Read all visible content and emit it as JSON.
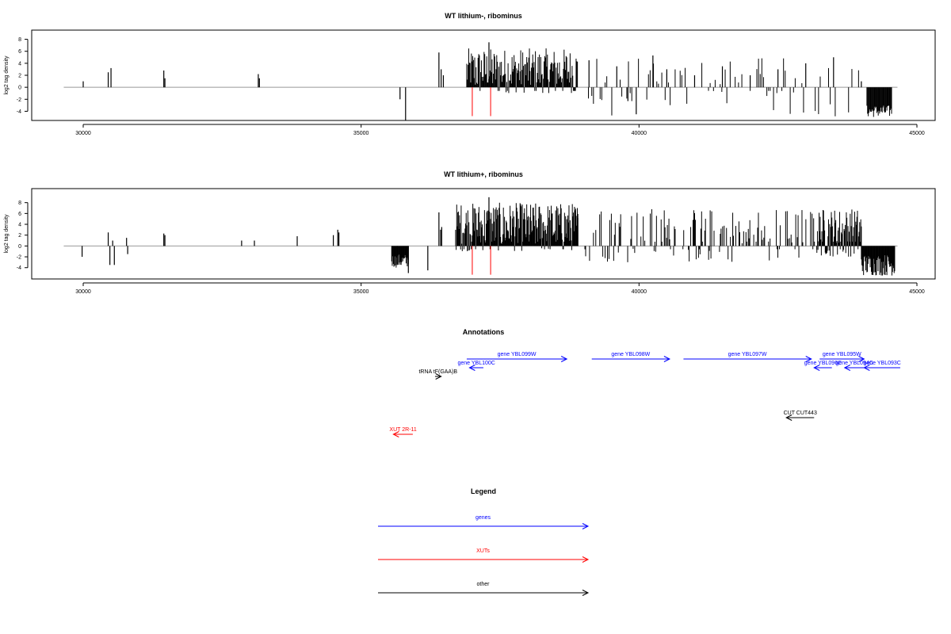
{
  "chart_data": [
    {
      "type": "bar",
      "title": "WT lithium-, ribominus",
      "ylabel": "log2 tag density",
      "xlim": [
        29600,
        44800
      ],
      "ylim": [
        -5,
        9
      ],
      "xticks": [
        30000,
        35000,
        40000,
        45000
      ],
      "yticks": [
        -4,
        -2,
        0,
        2,
        4,
        6,
        8
      ],
      "baseline": [
        29650,
        44650
      ],
      "red_markers": [
        37000,
        37330
      ],
      "bars": [
        {
          "x": 30000,
          "y": 1
        },
        {
          "x": 30450,
          "y": 2.5
        },
        {
          "x": 30500,
          "y": 3.2
        },
        {
          "x": 31450,
          "y": 2.8
        },
        {
          "x": 31470,
          "y": 1.5
        },
        {
          "x": 33150,
          "y": 2.2
        },
        {
          "x": 33170,
          "y": 1.5
        },
        {
          "x": 35700,
          "y": -2
        },
        {
          "x": 35800,
          "y": -5.5
        },
        {
          "x": 36400,
          "y": 5.8
        },
        {
          "x": 36440,
          "y": 3
        },
        {
          "x": 36480,
          "y": 2
        },
        {
          "x": 37300,
          "y": 7.5
        },
        {
          "x": 39100,
          "y": 4.5
        },
        {
          "x": 39600,
          "y": 3.5
        },
        {
          "x": 39800,
          "y": -2.3
        },
        {
          "x": 39950,
          "y": -4.5
        },
        {
          "x": 40250,
          "y": 5.3
        },
        {
          "x": 40500,
          "y": 3
        },
        {
          "x": 41000,
          "y": 2
        },
        {
          "x": 41500,
          "y": 3.5
        },
        {
          "x": 42000,
          "y": 2
        },
        {
          "x": 42500,
          "y": 3
        },
        {
          "x": 43000,
          "y": 4
        },
        {
          "x": 43500,
          "y": 5
        },
        {
          "x": 44000,
          "y": 1
        }
      ],
      "dense_regions": [
        {
          "from": 36900,
          "to": 38900,
          "min": -1,
          "max": 6.5,
          "step": 12
        },
        {
          "from": 39000,
          "to": 44000,
          "min": -5,
          "max": 5,
          "step": 30,
          "sparse": true
        },
        {
          "from": 44100,
          "to": 44550,
          "min": -5,
          "max": -3,
          "step": 12
        }
      ]
    },
    {
      "type": "bar",
      "title": "WT lithium+, ribominus",
      "ylabel": "log2 tag density",
      "xlim": [
        29600,
        44800
      ],
      "ylim": [
        -5.5,
        10
      ],
      "xticks": [
        30000,
        35000,
        40000,
        45000
      ],
      "yticks": [
        -4,
        -2,
        0,
        2,
        4,
        6,
        8
      ],
      "baseline": [
        29650,
        44650
      ],
      "red_markers": [
        37000,
        37330
      ],
      "bars": [
        {
          "x": 29980,
          "y": -2
        },
        {
          "x": 30450,
          "y": 2.5
        },
        {
          "x": 30480,
          "y": -3.5
        },
        {
          "x": 30530,
          "y": 1
        },
        {
          "x": 30560,
          "y": -3.5
        },
        {
          "x": 30780,
          "y": 1.5
        },
        {
          "x": 30800,
          "y": -1.5
        },
        {
          "x": 31450,
          "y": 2.3
        },
        {
          "x": 31470,
          "y": 2
        },
        {
          "x": 32850,
          "y": 1
        },
        {
          "x": 33080,
          "y": 1
        },
        {
          "x": 33850,
          "y": 1.8
        },
        {
          "x": 34500,
          "y": 2
        },
        {
          "x": 34580,
          "y": 3
        },
        {
          "x": 34600,
          "y": 2.5
        },
        {
          "x": 35650,
          "y": -3.5
        },
        {
          "x": 35850,
          "y": -5
        },
        {
          "x": 36200,
          "y": -4.5
        },
        {
          "x": 36400,
          "y": 6.2
        },
        {
          "x": 36430,
          "y": 3
        },
        {
          "x": 36450,
          "y": 3.5
        },
        {
          "x": 37300,
          "y": 9
        }
      ],
      "dense_regions": [
        {
          "from": 35550,
          "to": 35850,
          "min": -4,
          "max": -1.5,
          "step": 10
        },
        {
          "from": 36700,
          "to": 38900,
          "min": -1,
          "max": 8,
          "step": 10
        },
        {
          "from": 38900,
          "to": 43200,
          "min": -3,
          "max": 7,
          "step": 14,
          "sparse": true
        },
        {
          "from": 43200,
          "to": 44000,
          "min": -2,
          "max": 7,
          "step": 10
        },
        {
          "from": 44000,
          "to": 44600,
          "min": -5.5,
          "max": -1.5,
          "step": 10
        }
      ]
    }
  ],
  "annotations": {
    "title": "Annotations",
    "xlim": [
      29600,
      44800
    ],
    "items": [
      {
        "label": "gene YBL099W",
        "start": 36900,
        "end": 38700,
        "dir": "right",
        "row": "top",
        "color": "#0000ff"
      },
      {
        "label": "gene YBL100C",
        "start": 36950,
        "end": 37200,
        "dir": "left",
        "row": "second",
        "color": "#0000ff"
      },
      {
        "label": "gene YBL098W",
        "start": 39150,
        "end": 40550,
        "dir": "right",
        "row": "top",
        "color": "#0000ff"
      },
      {
        "label": "gene YBL097W",
        "start": 40800,
        "end": 43100,
        "dir": "right",
        "row": "top",
        "color": "#0000ff"
      },
      {
        "label": "gene YBL095W",
        "start": 43250,
        "end": 44050,
        "dir": "right",
        "row": "top",
        "color": "#0000ff"
      },
      {
        "label": "gene YBL096C",
        "start": 43150,
        "end": 43470,
        "dir": "left",
        "row": "second",
        "color": "#0000ff"
      },
      {
        "label": "gene YBL094C",
        "start": 43700,
        "end": 44050,
        "dir": "left",
        "row": "second",
        "color": "#0000ff"
      },
      {
        "label": "gene YBL093C",
        "start": 44050,
        "end": 44700,
        "dir": "left",
        "row": "second",
        "color": "#0000ff"
      },
      {
        "label": "tRNA tF(GAA)B",
        "start": 36330,
        "end": 36440,
        "dir": "right",
        "row": "third",
        "color": "#000000"
      },
      {
        "label": "CUT CUT443",
        "start": 42650,
        "end": 43150,
        "dir": "left",
        "row": "cut",
        "color": "#000000"
      },
      {
        "label": "XUT 2R-11",
        "start": 35580,
        "end": 35930,
        "dir": "left",
        "row": "xut",
        "color": "#ff0000"
      }
    ]
  },
  "legend": {
    "title": "Legend",
    "entries": [
      {
        "label": "genes",
        "color": "#0000ff"
      },
      {
        "label": "XUTs",
        "color": "#ff0000"
      },
      {
        "label": "other",
        "color": "#000000"
      }
    ]
  }
}
